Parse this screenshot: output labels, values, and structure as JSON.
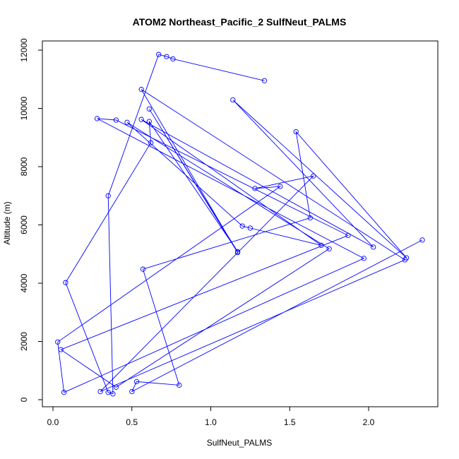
{
  "chart_data": {
    "type": "line",
    "title": "ATOM2 Northeast_Pacific_2 SulfNeut_PALMS",
    "xlabel": "SulfNeut_PALMS",
    "ylabel": "Altitude (m)",
    "xlim": [
      0.0,
      2.35
    ],
    "ylim": [
      0,
      12000
    ],
    "x_ticks": [
      0.0,
      0.5,
      1.0,
      1.5,
      2.0
    ],
    "x_tick_labels": [
      "0.0",
      "0.5",
      "1.0",
      "1.5",
      "2.0"
    ],
    "y_ticks": [
      0,
      2000,
      4000,
      6000,
      8000,
      10000,
      12000
    ],
    "y_tick_labels": [
      "0",
      "2000",
      "4000",
      "6000",
      "8000",
      "10000",
      "12000"
    ],
    "grid": false,
    "line_color": "#0000ff",
    "marker": "open-circle",
    "series": [
      {
        "points": [
          [
            1.34,
            10950
          ],
          [
            0.76,
            11700
          ],
          [
            0.72,
            11780
          ],
          [
            0.67,
            11850
          ],
          [
            0.35,
            7000
          ],
          [
            0.38,
            200
          ],
          [
            0.35,
            250
          ],
          [
            0.08,
            4020
          ],
          [
            0.62,
            8820
          ],
          [
            0.61,
            9550
          ],
          [
            1.17,
            5080
          ],
          [
            0.61,
            9980
          ],
          [
            1.17,
            5050
          ],
          [
            0.56,
            10650
          ],
          [
            2.23,
            4800
          ],
          [
            0.3,
            280
          ],
          [
            1.65,
            7680
          ],
          [
            1.28,
            7250
          ],
          [
            1.44,
            7320
          ],
          [
            0.03,
            1980
          ],
          [
            0.07,
            250
          ],
          [
            1.97,
            4850
          ],
          [
            0.28,
            9650
          ],
          [
            0.4,
            9600
          ],
          [
            1.87,
            5640
          ],
          [
            0.05,
            1720
          ],
          [
            0.4,
            430
          ],
          [
            1.75,
            5180
          ],
          [
            0.47,
            9520
          ],
          [
            1.2,
            5960
          ],
          [
            1.25,
            5890
          ],
          [
            1.7,
            5300
          ],
          [
            0.56,
            9620
          ],
          [
            2.03,
            5240
          ],
          [
            1.14,
            10290
          ],
          [
            2.24,
            4870
          ],
          [
            1.54,
            9200
          ],
          [
            1.63,
            6240
          ],
          [
            0.57,
            4480
          ],
          [
            0.8,
            500
          ],
          [
            0.53,
            620
          ],
          [
            0.5,
            280
          ],
          [
            2.34,
            5480
          ]
        ]
      }
    ]
  }
}
